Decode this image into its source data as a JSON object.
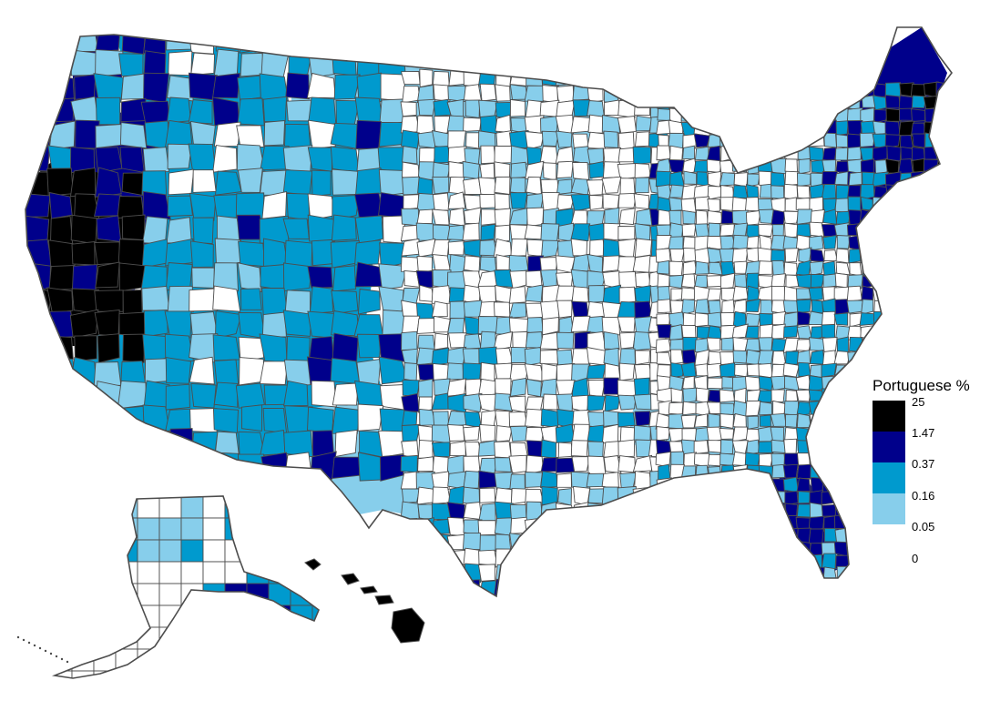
{
  "legend": {
    "title": "Portuguese %",
    "breaks": [
      "25",
      "1.47",
      "0.37",
      "0.16",
      "0.05",
      "0"
    ],
    "colors": [
      "#000000",
      "#00008b",
      "#009ace",
      "#87ceeb",
      "#ffffff"
    ]
  },
  "map": {
    "border_color": "#4d4d4d",
    "background": "#ffffff"
  }
}
